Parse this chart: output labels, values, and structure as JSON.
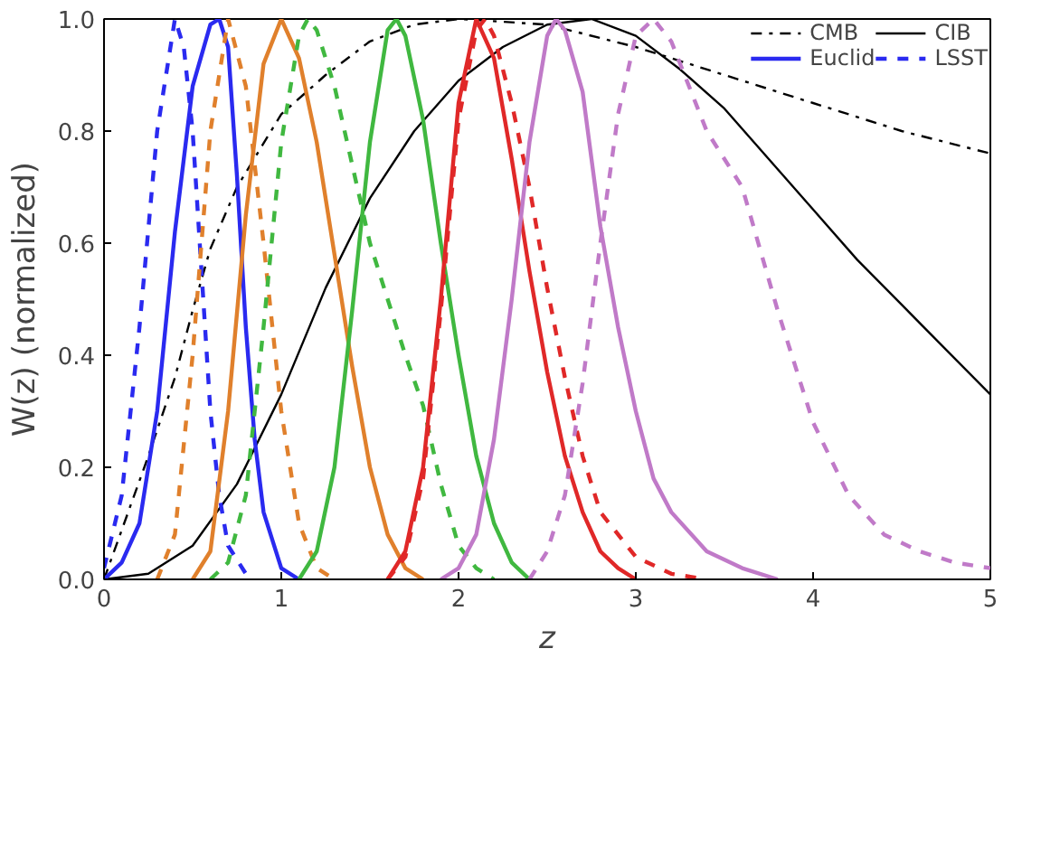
{
  "chart_data": {
    "type": "line",
    "xlabel": "z",
    "ylabel": "W(z) (normalized)",
    "xlim": [
      0,
      5
    ],
    "ylim": [
      0,
      1
    ],
    "xticks": [
      0,
      1,
      2,
      3,
      4,
      5
    ],
    "yticks": [
      {
        "value": 0,
        "label": "0.0"
      },
      {
        "value": 0.2,
        "label": "0.2"
      },
      {
        "value": 0.4,
        "label": "0.4"
      },
      {
        "value": 0.6,
        "label": "0.6"
      },
      {
        "value": 0.8,
        "label": "0.8"
      },
      {
        "value": 1,
        "label": "1.0"
      }
    ],
    "grid": false,
    "legend": "top right",
    "marker": "none",
    "series": [
      {
        "name": "CMB",
        "color": "#000000",
        "line_style": "dashdot",
        "x": [
          0,
          0.25,
          0.4,
          0.5,
          0.6,
          0.75,
          1,
          1.25,
          1.5,
          1.75,
          2,
          2.5,
          3,
          3.5,
          4,
          4.5,
          5
        ],
        "values": [
          0,
          0.22,
          0.36,
          0.48,
          0.59,
          0.7,
          0.83,
          0.9,
          0.96,
          0.99,
          1.0,
          0.99,
          0.95,
          0.9,
          0.85,
          0.8,
          0.76
        ]
      },
      {
        "name": "CIB",
        "color": "#000000",
        "line_style": "solid",
        "x": [
          0,
          0.25,
          0.5,
          0.75,
          1,
          1.25,
          1.5,
          1.75,
          2,
          2.25,
          2.5,
          2.75,
          3,
          3.25,
          3.5,
          3.75,
          4,
          4.25,
          4.5,
          4.75,
          5
        ],
        "values": [
          0,
          0.01,
          0.06,
          0.17,
          0.33,
          0.52,
          0.68,
          0.8,
          0.89,
          0.95,
          0.99,
          1.0,
          0.97,
          0.91,
          0.84,
          0.75,
          0.66,
          0.57,
          0.49,
          0.41,
          0.33
        ]
      },
      {
        "name": "Euclid",
        "color": "#2a2af0",
        "line_style": "solid",
        "x": [
          0,
          0.1,
          0.2,
          0.3,
          0.4,
          0.5,
          0.6,
          0.65,
          0.7,
          0.75,
          0.8,
          0.85,
          0.9,
          1.0,
          1.1
        ],
        "values": [
          0,
          0.03,
          0.1,
          0.3,
          0.62,
          0.88,
          0.99,
          1.0,
          0.95,
          0.72,
          0.45,
          0.25,
          0.12,
          0.02,
          0
        ]
      },
      {
        "name": "LSST",
        "color": "#2a2af0",
        "line_style": "dashed",
        "x": [
          0,
          0.1,
          0.2,
          0.3,
          0.4,
          0.45,
          0.5,
          0.55,
          0.6,
          0.65,
          0.7,
          0.8
        ],
        "values": [
          0.02,
          0.15,
          0.45,
          0.8,
          1.0,
          0.95,
          0.8,
          0.55,
          0.3,
          0.15,
          0.06,
          0.01
        ]
      },
      {
        "color": "#e0802c",
        "line_style": "solid",
        "x": [
          0.5,
          0.6,
          0.7,
          0.8,
          0.9,
          1.0,
          1.1,
          1.2,
          1.3,
          1.4,
          1.5,
          1.6,
          1.7,
          1.8
        ],
        "values": [
          0,
          0.05,
          0.3,
          0.65,
          0.92,
          1.0,
          0.93,
          0.78,
          0.58,
          0.38,
          0.2,
          0.08,
          0.02,
          0
        ]
      },
      {
        "color": "#e0802c",
        "line_style": "dashed",
        "x": [
          0.3,
          0.4,
          0.5,
          0.6,
          0.7,
          0.8,
          0.9,
          1.0,
          1.1,
          1.2,
          1.3
        ],
        "values": [
          0,
          0.08,
          0.4,
          0.8,
          1.0,
          0.88,
          0.6,
          0.3,
          0.1,
          0.02,
          0
        ]
      },
      {
        "color": "#40b840",
        "line_style": "solid",
        "x": [
          1.1,
          1.2,
          1.3,
          1.4,
          1.5,
          1.6,
          1.65,
          1.7,
          1.8,
          1.9,
          2.0,
          2.1,
          2.2,
          2.3,
          2.4
        ],
        "values": [
          0,
          0.05,
          0.2,
          0.48,
          0.78,
          0.98,
          1.0,
          0.97,
          0.82,
          0.6,
          0.4,
          0.22,
          0.1,
          0.03,
          0
        ]
      },
      {
        "color": "#40b840",
        "line_style": "dashed",
        "x": [
          0.6,
          0.7,
          0.8,
          0.9,
          1.0,
          1.1,
          1.15,
          1.2,
          1.3,
          1.4,
          1.5,
          1.6,
          1.7,
          1.8,
          1.9,
          2.0,
          2.1,
          2.2
        ],
        "values": [
          0,
          0.03,
          0.15,
          0.45,
          0.78,
          0.97,
          1.0,
          0.98,
          0.88,
          0.74,
          0.6,
          0.5,
          0.4,
          0.31,
          0.17,
          0.06,
          0.02,
          0
        ]
      },
      {
        "color": "#e02828",
        "line_style": "solid",
        "x": [
          1.6,
          1.7,
          1.8,
          1.9,
          2.0,
          2.1,
          2.2,
          2.3,
          2.4,
          2.5,
          2.6,
          2.7,
          2.8,
          2.9,
          3.0
        ],
        "values": [
          0,
          0.05,
          0.2,
          0.5,
          0.85,
          1.0,
          0.93,
          0.75,
          0.55,
          0.37,
          0.22,
          0.12,
          0.05,
          0.02,
          0
        ]
      },
      {
        "color": "#e02828",
        "line_style": "dashed",
        "x": [
          1.6,
          1.7,
          1.8,
          1.9,
          2.0,
          2.1,
          2.15,
          2.2,
          2.3,
          2.4,
          2.5,
          2.6,
          2.7,
          2.8,
          3.0,
          3.2,
          3.4
        ],
        "values": [
          0,
          0.04,
          0.18,
          0.48,
          0.82,
          0.98,
          1.0,
          0.97,
          0.85,
          0.7,
          0.52,
          0.36,
          0.22,
          0.12,
          0.04,
          0.01,
          0
        ]
      },
      {
        "color": "#c07ac8",
        "line_style": "solid",
        "x": [
          1.9,
          2.0,
          2.1,
          2.2,
          2.3,
          2.4,
          2.5,
          2.55,
          2.6,
          2.7,
          2.8,
          2.9,
          3.0,
          3.1,
          3.2,
          3.4,
          3.6,
          3.8
        ],
        "values": [
          0,
          0.02,
          0.08,
          0.25,
          0.5,
          0.78,
          0.97,
          1.0,
          0.98,
          0.87,
          0.63,
          0.45,
          0.3,
          0.18,
          0.12,
          0.05,
          0.02,
          0
        ]
      },
      {
        "color": "#c07ac8",
        "line_style": "dashed",
        "x": [
          2.4,
          2.5,
          2.6,
          2.7,
          2.8,
          2.9,
          3.0,
          3.1,
          3.2,
          3.4,
          3.6,
          3.8,
          4.0,
          4.2,
          4.4,
          4.6,
          4.8,
          5.0
        ],
        "values": [
          0,
          0.05,
          0.15,
          0.35,
          0.6,
          0.83,
          0.97,
          1.0,
          0.96,
          0.8,
          0.7,
          0.48,
          0.28,
          0.15,
          0.08,
          0.05,
          0.03,
          0.02
        ]
      }
    ]
  }
}
